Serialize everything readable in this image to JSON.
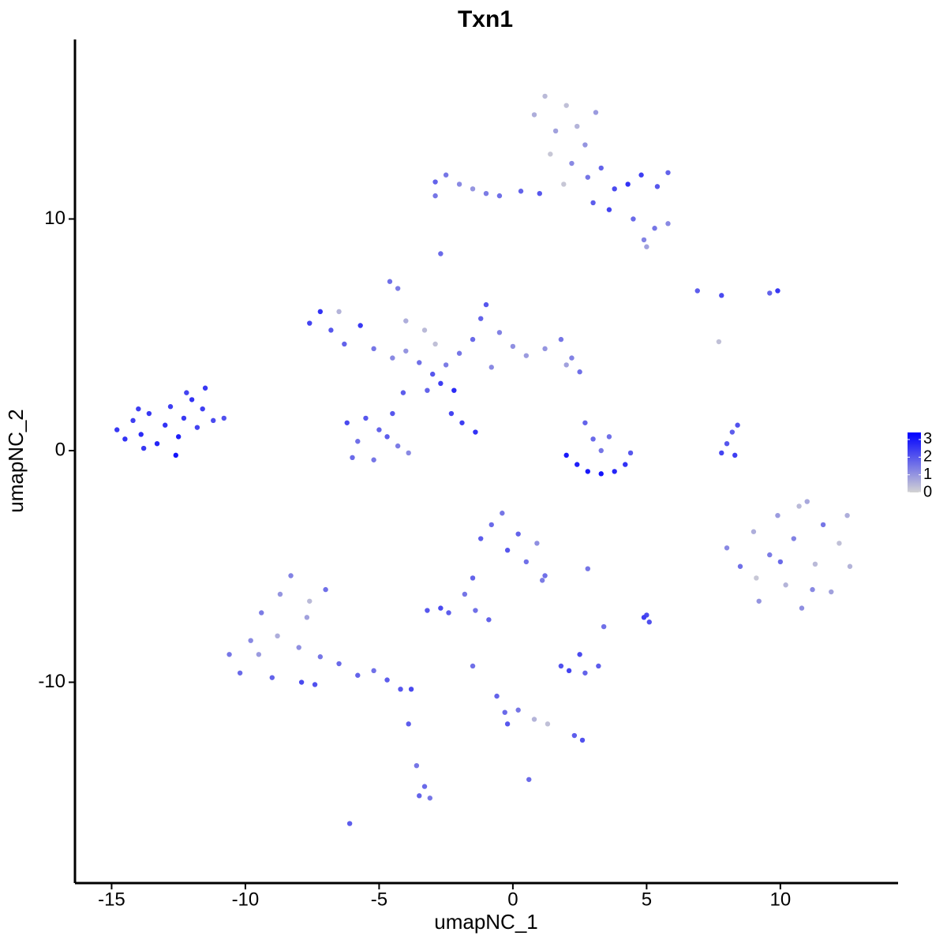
{
  "chart_data": {
    "type": "scatter",
    "title": "Txn1",
    "xlabel": "umapNC_1",
    "ylabel": "umapNC_2",
    "xlim": [
      -16.37,
      14.4
    ],
    "ylim": [
      -18.67,
      17.75
    ],
    "xticks": [
      -15,
      -10,
      -5,
      0,
      5,
      10
    ],
    "yticks": [
      -10,
      0,
      10
    ],
    "color_low": "#d3d3d3",
    "color_high": "#0000ff",
    "colorbar": {
      "lim": [
        0,
        3.4
      ],
      "ticks": [
        0,
        1,
        2,
        3
      ]
    },
    "x": [
      -14.8,
      -14.5,
      -14.2,
      -13.9,
      -13.6,
      -13.3,
      -13.0,
      -12.8,
      -12.5,
      -12.3,
      -12.0,
      -11.8,
      -11.5,
      -11.2,
      -10.8,
      -12.6,
      -13.8,
      -14.0,
      -12.2,
      -11.6,
      -7.6,
      -7.2,
      -6.8,
      -6.3,
      -5.7,
      -5.2,
      -4.5,
      -4.0,
      -3.5,
      -3.0,
      -2.7,
      -2.2,
      -3.2,
      -2.5,
      -2.0,
      -1.5,
      -1.2,
      -1.0,
      -0.5,
      0,
      0.5,
      1.2,
      1.8,
      2.2,
      2.5,
      2.0,
      -0.8,
      -4.1,
      -4.5,
      -5.0,
      -5.8,
      -6.2,
      -6.0,
      -5.2,
      -4.3,
      -3.9,
      -4.7,
      -5.5,
      -2.3,
      -1.9,
      -1.4,
      -4.6,
      -4.3,
      -4.0,
      -3.3,
      -6.5,
      -2.9,
      -2.9,
      -2.5,
      -2.0,
      -1.5,
      -1.0,
      -0.5,
      0.3,
      1.0,
      0.8,
      1.2,
      1.6,
      2.0,
      2.4,
      2.7,
      1.4,
      2.2,
      2.8,
      3.3,
      3.8,
      4.3,
      4.8,
      5.4,
      5.8,
      3.0,
      3.6,
      4.5,
      4.9,
      5.3,
      5.8,
      5.0,
      -2.9,
      -2.7,
      3.1,
      1.9,
      6.9,
      7.8,
      9.6,
      9.9,
      7.7,
      2.0,
      2.4,
      2.8,
      3.3,
      3.8,
      4.2,
      4.4,
      3.0,
      2.7,
      3.3,
      3.6,
      7.8,
      8.0,
      8.2,
      8.4,
      8.3,
      8.0,
      8.5,
      9.0,
      9.2,
      9.6,
      9.9,
      10.2,
      10.5,
      10.8,
      11.0,
      11.3,
      11.6,
      11.9,
      12.2,
      12.5,
      12.6,
      10.0,
      9.1,
      11.2,
      10.7,
      -10.6,
      -10.2,
      -9.8,
      -9.4,
      -9.0,
      -8.7,
      -8.3,
      -8.0,
      -7.7,
      -7.4,
      -7.9,
      -7.0,
      -7.2,
      -6.5,
      -5.8,
      -5.2,
      -4.7,
      -4.2,
      -3.8,
      -8.8,
      -9.5,
      -7.6,
      -1.2,
      -0.8,
      -0.4,
      -0.2,
      0.2,
      0.5,
      0.9,
      1.2,
      -1.5,
      -1.8,
      1.1,
      -3.2,
      -2.7,
      -2.4,
      -1.4,
      -0.9,
      -1.5,
      -0.6,
      -0.3,
      -0.2,
      0.2,
      0.8,
      1.3,
      2.3,
      2.6,
      0.6,
      1.8,
      2.1,
      2.5,
      2.7,
      3.2,
      2.8,
      3.4,
      5.0,
      5.1,
      4.9,
      -3.9,
      -3.6,
      -3.5,
      -3.3,
      -3.1,
      -6.1
    ],
    "y": [
      0.9,
      0.5,
      1.3,
      0.7,
      1.6,
      0.3,
      1.1,
      1.9,
      0.6,
      1.4,
      2.2,
      1.0,
      2.7,
      1.3,
      1.4,
      -0.2,
      0.1,
      1.8,
      2.5,
      1.8,
      5.5,
      6.0,
      5.2,
      4.6,
      5.4,
      4.4,
      4.0,
      4.3,
      3.8,
      3.3,
      2.9,
      2.6,
      2.6,
      3.7,
      4.2,
      4.8,
      5.7,
      6.3,
      5.1,
      4.5,
      4.1,
      4.4,
      4.8,
      4.0,
      3.4,
      3.7,
      3.6,
      2.5,
      1.6,
      0.9,
      0.4,
      1.2,
      -0.3,
      -0.4,
      0.2,
      -0.1,
      0.6,
      1.4,
      1.6,
      1.2,
      0.8,
      7.3,
      7.0,
      5.6,
      5.2,
      6.0,
      4.6,
      11.6,
      11.9,
      11.5,
      11.3,
      11.1,
      11.0,
      11.2,
      11.1,
      14.5,
      15.3,
      13.8,
      14.9,
      14.0,
      13.2,
      12.8,
      12.4,
      11.8,
      12.2,
      11.3,
      11.5,
      11.9,
      11.4,
      12.0,
      10.7,
      10.4,
      10.0,
      9.1,
      9.6,
      9.8,
      8.8,
      11.0,
      8.5,
      14.6,
      11.5,
      6.9,
      6.7,
      6.8,
      6.9,
      4.7,
      -0.2,
      -0.6,
      -0.9,
      -1.0,
      -0.9,
      -0.6,
      -0.1,
      0.5,
      1.2,
      0.0,
      0.6,
      -0.1,
      0.3,
      0.8,
      1.1,
      -0.2,
      -4.2,
      -5.0,
      -3.5,
      -6.5,
      -4.5,
      -2.8,
      -5.8,
      -3.8,
      -6.8,
      -2.2,
      -4.9,
      -3.2,
      -6.1,
      -4.0,
      -2.8,
      -5.0,
      -4.8,
      -5.5,
      -6.0,
      -2.4,
      -8.8,
      -9.6,
      -8.2,
      -7.0,
      -9.8,
      -6.2,
      -5.4,
      -8.5,
      -7.2,
      -10.1,
      -10.0,
      -6.0,
      -8.9,
      -9.2,
      -9.7,
      -9.5,
      -9.9,
      -10.3,
      -10.3,
      -8.0,
      -8.8,
      -6.5,
      -3.8,
      -3.2,
      -2.7,
      -4.3,
      -3.6,
      -4.8,
      -4.0,
      -5.4,
      -5.5,
      -6.2,
      -5.6,
      -6.9,
      -6.8,
      -7.0,
      -6.9,
      -7.3,
      -9.3,
      -10.6,
      -11.3,
      -11.8,
      -11.2,
      -11.6,
      -11.8,
      -12.3,
      -12.5,
      -14.2,
      -9.3,
      -9.5,
      -8.8,
      -9.6,
      -9.3,
      -5.1,
      -7.6,
      -7.1,
      -7.4,
      -7.2,
      -11.8,
      -13.6,
      -14.9,
      -14.5,
      -15.0,
      -16.1
    ],
    "values": [
      2.5,
      2.6,
      2.4,
      2.7,
      2.5,
      2.8,
      2.6,
      2.4,
      2.9,
      2.5,
      2.6,
      2.3,
      2.5,
      2.2,
      2.1,
      3.1,
      2.5,
      2.4,
      2.3,
      2.4,
      2.3,
      2.6,
      2.0,
      1.8,
      2.5,
      1.5,
      1.2,
      1.0,
      1.6,
      2.0,
      2.4,
      2.7,
      1.8,
      1.4,
      1.5,
      1.7,
      1.8,
      2.0,
      1.3,
      1.1,
      0.9,
      1.0,
      1.5,
      1.3,
      1.6,
      0.8,
      1.2,
      1.9,
      2.0,
      1.8,
      1.6,
      2.2,
      1.7,
      1.5,
      1.4,
      1.2,
      1.9,
      2.0,
      2.3,
      2.4,
      2.6,
      1.6,
      1.4,
      0.6,
      0.4,
      0.5,
      0.3,
      1.8,
      1.5,
      1.2,
      1.0,
      1.4,
      1.6,
      1.8,
      2.0,
      0.6,
      0.4,
      0.8,
      0.3,
      0.5,
      1.0,
      0.2,
      1.2,
      1.5,
      1.8,
      2.2,
      2.6,
      2.4,
      2.0,
      1.8,
      1.9,
      2.3,
      1.7,
      1.3,
      1.5,
      1.2,
      0.8,
      1.5,
      1.7,
      0.9,
      0.2,
      1.9,
      2.2,
      1.8,
      2.5,
      0.3,
      3.0,
      2.9,
      3.0,
      3.1,
      2.8,
      2.6,
      2.0,
      1.7,
      1.8,
      1.5,
      1.6,
      2.3,
      2.0,
      1.9,
      2.1,
      2.4,
      1.2,
      1.6,
      0.6,
      1.0,
      1.4,
      0.9,
      0.5,
      1.3,
      1.1,
      0.7,
      0.4,
      1.5,
      0.8,
      0.3,
      0.6,
      0.5,
      1.7,
      0.2,
      1.2,
      0.4,
      1.5,
      1.7,
      1.2,
      1.4,
      1.8,
      1.0,
      1.3,
      1.1,
      0.8,
      2.1,
      2.2,
      1.6,
      1.5,
      1.7,
      1.8,
      1.6,
      1.9,
      2.0,
      2.2,
      0.6,
      0.9,
      0.4,
      1.9,
      1.7,
      1.5,
      2.0,
      1.8,
      1.6,
      1.1,
      1.6,
      1.8,
      1.5,
      1.4,
      2.0,
      2.2,
      1.9,
      1.6,
      1.8,
      1.6,
      1.8,
      1.7,
      2.0,
      1.5,
      0.5,
      0.3,
      1.9,
      2.1,
      1.7,
      2.1,
      2.3,
      2.2,
      1.8,
      1.9,
      1.5,
      1.6,
      2.2,
      2.1,
      2.4,
      1.9,
      1.5,
      1.8,
      1.7,
      1.5,
      1.9
    ]
  }
}
